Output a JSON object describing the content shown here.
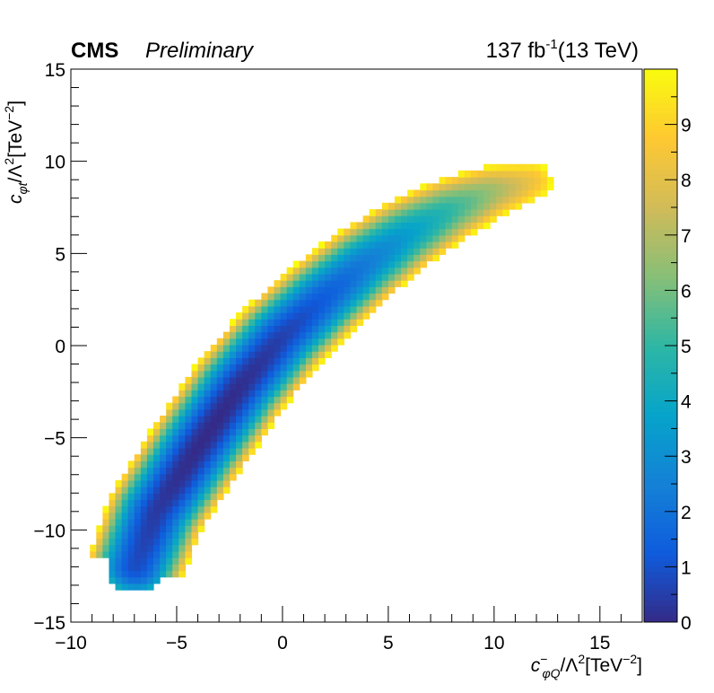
{
  "header": {
    "experiment": "CMS",
    "status": "Preliminary",
    "lumi_value": "137 fb",
    "lumi_exponent": "-1",
    "energy": "(13 TeV)"
  },
  "chart_data": {
    "type": "heatmap",
    "xlabel": {
      "symbol": "c",
      "superscript": "−",
      "subscript": "φQ",
      "rest": "/Λ",
      "power": "2",
      "unit": "[TeV",
      "unit_power": "−2",
      "unit_close": "]"
    },
    "ylabel": {
      "symbol": "c",
      "subscript": "φt",
      "rest": "/Λ",
      "power": "2",
      "unit": "[TeV",
      "unit_power": "−2",
      "unit_close": "]"
    },
    "xlim": [
      -10,
      17
    ],
    "ylim": [
      -15,
      15
    ],
    "x_ticks": [
      -10,
      -5,
      0,
      5,
      10,
      15
    ],
    "x_tick_labels": [
      "−10",
      "−5",
      "0",
      "5",
      "10",
      "15"
    ],
    "y_ticks": [
      -15,
      -10,
      -5,
      0,
      5,
      10,
      15
    ],
    "y_tick_labels": [
      "−15",
      "−10",
      "−5",
      "0",
      "5",
      "10",
      "15"
    ],
    "z_range": [
      0,
      10
    ],
    "z_ticks": [
      0,
      1,
      2,
      3,
      4,
      5,
      6,
      7,
      8,
      9
    ],
    "z_tick_labels": [
      "0",
      "1",
      "2",
      "3",
      "4",
      "5",
      "6",
      "7",
      "8",
      "9"
    ],
    "colormap": [
      "#352a87",
      "#0f5cdd",
      "#1481d6",
      "#06a4ca",
      "#2eb7a4",
      "#87bf77",
      "#d1bb59",
      "#fec832",
      "#f9fb0e"
    ],
    "minimum": {
      "x": -3.3,
      "y": -4.7
    },
    "band_ridge": [
      {
        "x": -7.0,
        "y": -12.0
      },
      {
        "x": -6.0,
        "y": -9.0
      },
      {
        "x": -4.0,
        "y": -5.5
      },
      {
        "x": -2.0,
        "y": -2.2
      },
      {
        "x": 0.0,
        "y": 0.5
      },
      {
        "x": 2.0,
        "y": 2.6
      },
      {
        "x": 4.0,
        "y": 4.5
      },
      {
        "x": 6.0,
        "y": 6.1
      },
      {
        "x": 8.0,
        "y": 7.4
      },
      {
        "x": 10.0,
        "y": 8.4
      },
      {
        "x": 12.0,
        "y": 9.0
      }
    ],
    "band_half_width": 2.4,
    "grid": false
  }
}
